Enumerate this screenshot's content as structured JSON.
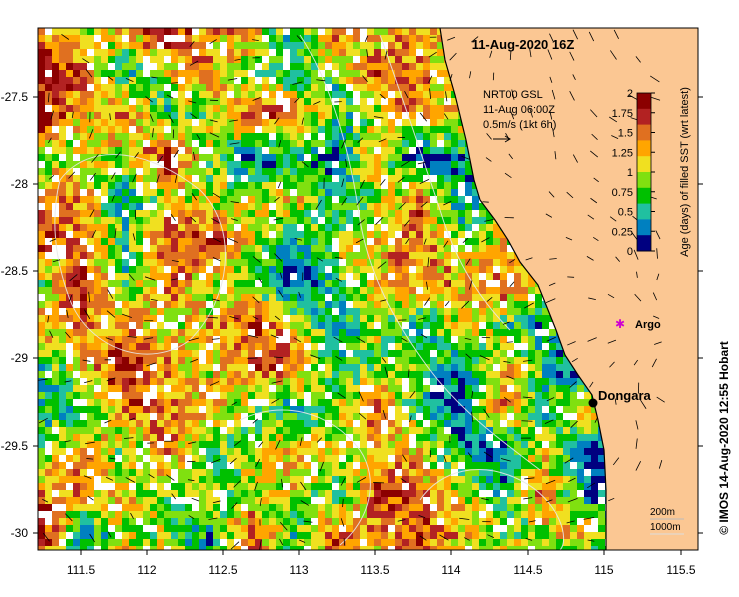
{
  "map": {
    "title": "11-Aug-2020 16Z",
    "current_ref": {
      "product": "NRT00 GSL",
      "time": "11-Aug 06:00Z",
      "scale": "0.5m/s (1kt 6h)"
    },
    "x_ticks": [
      "111.5",
      "112",
      "112.5",
      "113",
      "113.5",
      "114",
      "114.5",
      "115",
      "115.5"
    ],
    "y_ticks": [
      "-27.5",
      "-28",
      "-28.5",
      "-29",
      "-29.5",
      "-30"
    ],
    "land_color": "#FBC793",
    "places": [
      {
        "label": "Dongara",
        "marker": "black-dot"
      },
      {
        "label": "Argo",
        "marker": "magenta-star"
      }
    ],
    "isobath_legend": [
      "200m",
      "1000m"
    ],
    "credit": "© IMOS 14-Aug-2020 12:55 Hobart"
  },
  "colorbar": {
    "label": "Age (days) of filled SST (wrt latest)",
    "ticks": [
      "2",
      "1.75",
      "1.5",
      "1.25",
      "1",
      "0.75",
      "0.5",
      "0.25",
      "0"
    ],
    "colors": [
      "#8B0000",
      "#B22222",
      "#E07020",
      "#FFA500",
      "#F0E020",
      "#80E010",
      "#00C000",
      "#20C0A0",
      "#0080C0",
      "#000080"
    ]
  }
}
